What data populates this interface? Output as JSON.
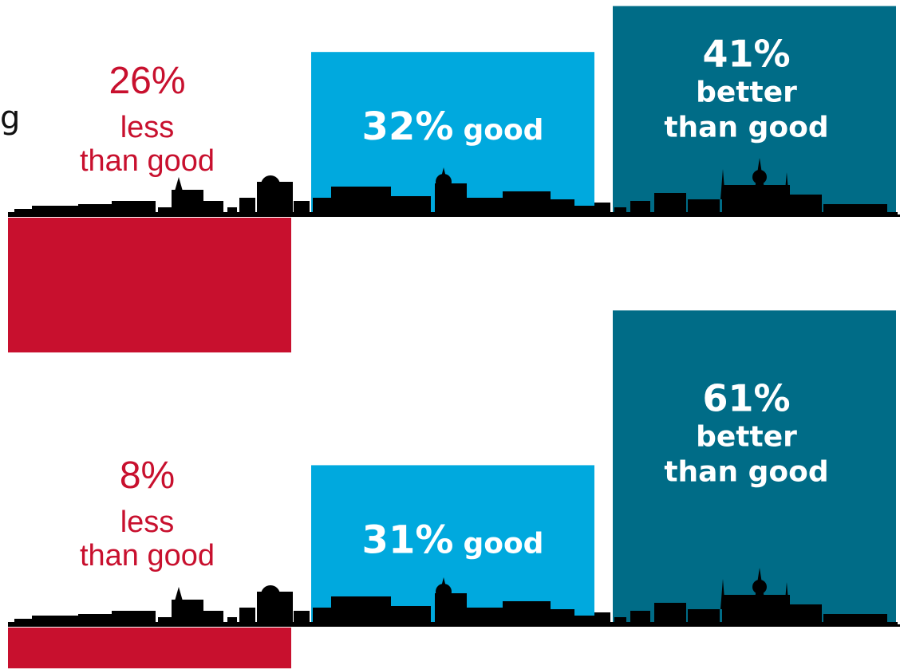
{
  "cutoff_text": "g",
  "colors": {
    "red": "#c8102e",
    "light_blue": "#00a9de",
    "dark_blue": "#006c87",
    "skyline": "#000000",
    "white": "#ffffff"
  },
  "chart_data": [
    {
      "type": "bar",
      "categories": [
        "less than good",
        "good",
        "better than good"
      ],
      "values": [
        26,
        32,
        41
      ],
      "labels": [
        {
          "value": "26%",
          "lines": [
            "less",
            "than good"
          ]
        },
        {
          "value": "32%",
          "lines": [
            "good"
          ]
        },
        {
          "value": "41%",
          "lines": [
            "better",
            "than good"
          ]
        }
      ]
    },
    {
      "type": "bar",
      "categories": [
        "less than good",
        "good",
        "better than good"
      ],
      "values": [
        8,
        31,
        61
      ],
      "labels": [
        {
          "value": "8%",
          "lines": [
            "less",
            "than good"
          ]
        },
        {
          "value": "31%",
          "lines": [
            "good"
          ]
        },
        {
          "value": "61%",
          "lines": [
            "better",
            "than good"
          ]
        }
      ]
    }
  ]
}
